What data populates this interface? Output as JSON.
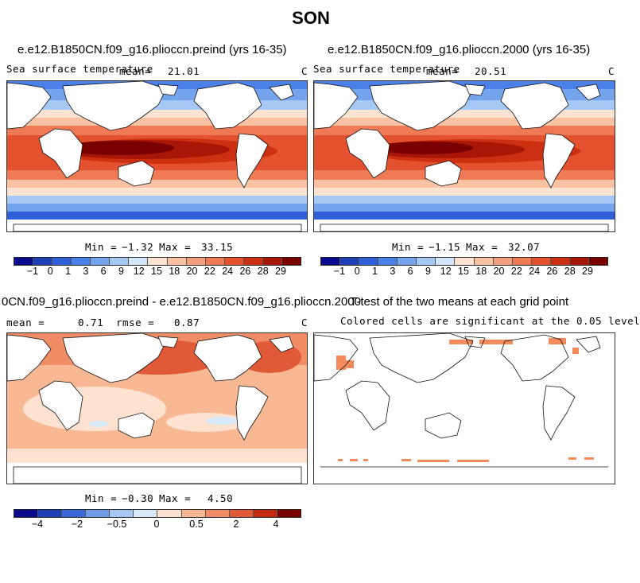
{
  "figure": {
    "season": "SON"
  },
  "panels": [
    {
      "id": "p1",
      "title": "e.e12.B1850CN.f09_g16.plioccn.preind (yrs 16-35)",
      "field_label": "Sea surface temperature",
      "stat_label": "mean=",
      "stat_value": "21.01",
      "unit": "C",
      "min_label": "Min =",
      "min_value": "-1.32",
      "max_label": "Max =",
      "max_value": "33.15",
      "colorbar_ticks": [
        "-1",
        "0",
        "1",
        "3",
        "6",
        "9",
        "12",
        "15",
        "18",
        "20",
        "22",
        "24",
        "26",
        "28",
        "29"
      ]
    },
    {
      "id": "p2",
      "title": "e.e12.B1850CN.f09_g16.plioccn.2000 (yrs 16-35)",
      "field_label": "Sea surface temperature",
      "stat_label": "mean=",
      "stat_value": "20.51",
      "unit": "C",
      "min_label": "Min =",
      "min_value": "-1.15",
      "max_label": "Max =",
      "max_value": "32.07",
      "colorbar_ticks": [
        "-1",
        "0",
        "1",
        "3",
        "6",
        "9",
        "12",
        "15",
        "18",
        "20",
        "22",
        "24",
        "26",
        "28",
        "29"
      ]
    },
    {
      "id": "p3",
      "title": "0CN.f09_g16.plioccn.preind - e.e12.B1850CN.f09_g16.plioccn.2000",
      "stat_label": "mean =",
      "stat_value": "0.71",
      "stat2_label": "rmse =",
      "stat2_value": "0.87",
      "unit": "C",
      "min_label": "Min =",
      "min_value": "-0.30",
      "max_label": "Max =",
      "max_value": "4.50",
      "colorbar_ticks": [
        "-4",
        "-2",
        "-0.5",
        "0",
        "0.5",
        "2",
        "4"
      ]
    },
    {
      "id": "p4",
      "title": "T-test of the two means at each grid point",
      "subtitle": "Colored cells are significant at the 0.05 level"
    }
  ],
  "colors": {
    "sst_scale": [
      "#0a0a8c",
      "#1f3fb4",
      "#2f5fd8",
      "#4b80e8",
      "#75a4ef",
      "#a6c8f5",
      "#d3e6fa",
      "#fde4d2",
      "#f9c2a3",
      "#f49f7c",
      "#ef7a55",
      "#e4512e",
      "#cc2f12",
      "#a81608",
      "#7a0000"
    ],
    "diff_scale": [
      "#0a0a8c",
      "#1f3fb4",
      "#3a68d8",
      "#6f9ae8",
      "#a6c8f5",
      "#d7e9fb",
      "#fde2cf",
      "#f8b894",
      "#f08c66",
      "#e05a38",
      "#c02a10",
      "#7a0000"
    ],
    "land": "#ffffff",
    "coast": "#111111"
  }
}
